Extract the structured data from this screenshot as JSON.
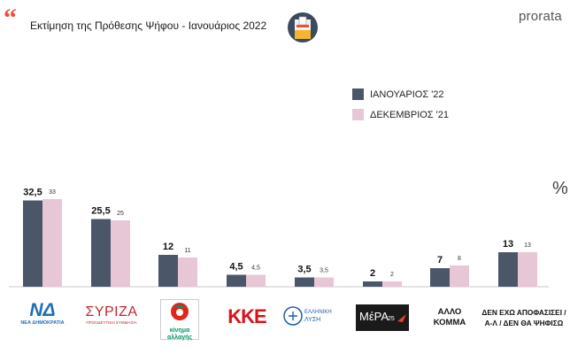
{
  "header": {
    "quote_mark": "“",
    "title": "Εκτίμηση της Πρόθεσης Ψήφου - Ιανουάριος 2022",
    "brand": "prorata"
  },
  "percent_sign": "%",
  "colors": {
    "jan": "#4b5669",
    "dec": "#e7c7d6",
    "axis": "#c9c9c9",
    "accent": "#e8503a"
  },
  "logos": {
    "nd": {
      "mark": "ΝΔ",
      "caption": "ΝΕΑ ΔΗΜΟΚΡΑΤΙΑ"
    },
    "syriza": {
      "mark": "ΣΥΡΙΖΑ",
      "caption": "ΠΡΟΟΔΕΥΤΙΚΗ ΣΥΜΜΑΧΙΑ"
    },
    "kinal": {
      "line1": "κίνημα",
      "line2": "αλλαγής"
    },
    "kke": {
      "mark": "ΚΚΕ"
    },
    "el": {
      "line1": "ΕΛΛΗΝΙΚΗ",
      "line2": "ΛΥΣΗ"
    },
    "mera25": {
      "mark": "ΜέΡΑ",
      "sup": "25"
    }
  },
  "party_labels": {
    "other": [
      "ΑΛΛΟ",
      "ΚΟΜΜΑ"
    ],
    "undecided": [
      "ΔΕΝ ΕΧΩ ΑΠΟΦΑΣΙΣΕΙ /",
      "Α-Λ / ΔΕΝ ΘΑ ΨΗΦΙΣΩ"
    ]
  },
  "chart_data": {
    "type": "bar",
    "categories": [
      "ΝΔ",
      "ΣΥΡΙΖΑ",
      "ΚΙΝΑΛ",
      "ΚΚΕ",
      "ΕΛΛΗΝΙΚΗ ΛΥΣΗ",
      "ΜέΡΑ25",
      "ΑΛΛΟ ΚΟΜΜΑ",
      "ΔΕΝ ΕΧΩ ΑΠΟΦΑΣΙΣΕΙ / Α-Λ / ΔΕΝ ΘΑ ΨΗΦΙΣΩ"
    ],
    "series": [
      {
        "name": "ΙΑΝΟΥΑΡΙΟΣ '22",
        "values": [
          32.5,
          25.5,
          12,
          4.5,
          3.5,
          2,
          7,
          13
        ],
        "labels": [
          "32,5",
          "25,5",
          "12",
          "4,5",
          "3,5",
          "2",
          "7",
          "13"
        ]
      },
      {
        "name": "ΔΕΚΕΜΒΡΙΟΣ '21",
        "values": [
          33,
          25,
          11,
          4.5,
          3.5,
          2,
          8,
          13
        ],
        "labels": [
          "33",
          "25",
          "11",
          "4,5",
          "3,5",
          "2",
          "8",
          "13"
        ]
      }
    ],
    "title": "Εκτίμηση της Πρόθεσης Ψήφου - Ιανουάριος 2022",
    "ylim": [
      0,
      35
    ],
    "grid": false,
    "legend": "top-right"
  }
}
